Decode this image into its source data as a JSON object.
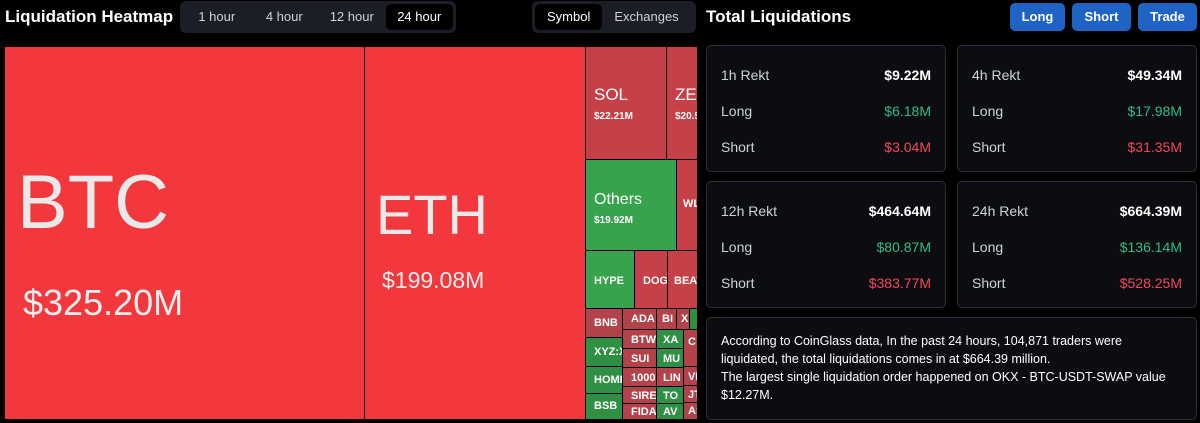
{
  "heatmap": {
    "title": "Liquidation Heatmap",
    "time_options": [
      "1 hour",
      "4 hour",
      "12 hour",
      "24 hour"
    ],
    "selected_time": "24 hour",
    "view_options": [
      "Symbol",
      "Exchanges"
    ],
    "selected_view": "Symbol",
    "tiles": [
      {
        "symbol": "BTC",
        "value": "$325.20M"
      },
      {
        "symbol": "ETH",
        "value": "$199.08M"
      },
      {
        "symbol": "SOL",
        "value": "$22.21M"
      },
      {
        "symbol": "ZEC",
        "value": "$20.5"
      },
      {
        "symbol": "Others",
        "value": "$19.92M"
      },
      {
        "symbol": "WL",
        "value": ""
      },
      {
        "symbol": "HYPE",
        "value": ""
      },
      {
        "symbol": "DOG",
        "value": ""
      },
      {
        "symbol": "BEAT",
        "value": ""
      },
      {
        "symbol": "BNB",
        "value": ""
      },
      {
        "symbol": "ADA",
        "value": ""
      },
      {
        "symbol": "BI",
        "value": ""
      },
      {
        "symbol": "X",
        "value": ""
      },
      {
        "symbol": "XYZ:X",
        "value": ""
      },
      {
        "symbol": "BTW",
        "value": ""
      },
      {
        "symbol": "XA",
        "value": ""
      },
      {
        "symbol": "SUI",
        "value": ""
      },
      {
        "symbol": "MU",
        "value": ""
      },
      {
        "symbol": "C",
        "value": ""
      },
      {
        "symbol": "HOME",
        "value": ""
      },
      {
        "symbol": "1000",
        "value": ""
      },
      {
        "symbol": "LIN",
        "value": ""
      },
      {
        "symbol": "VI",
        "value": ""
      },
      {
        "symbol": "SIRE",
        "value": ""
      },
      {
        "symbol": "TO",
        "value": ""
      },
      {
        "symbol": "JT",
        "value": ""
      },
      {
        "symbol": "BSB",
        "value": ""
      },
      {
        "symbol": "FIDA",
        "value": ""
      },
      {
        "symbol": "AV",
        "value": ""
      },
      {
        "symbol": "AS",
        "value": ""
      }
    ]
  },
  "total": {
    "title": "Total Liquidations",
    "buttons": [
      "Long",
      "Short",
      "Trade"
    ],
    "cards": [
      {
        "label": "1h Rekt",
        "total": "$9.22M",
        "long_label": "Long",
        "long": "$6.18M",
        "short_label": "Short",
        "short": "$3.04M"
      },
      {
        "label": "4h Rekt",
        "total": "$49.34M",
        "long_label": "Long",
        "long": "$17.98M",
        "short_label": "Short",
        "short": "$31.35M"
      },
      {
        "label": "12h Rekt",
        "total": "$464.64M",
        "long_label": "Long",
        "long": "$80.87M",
        "short_label": "Short",
        "short": "$383.77M"
      },
      {
        "label": "24h Rekt",
        "total": "$664.39M",
        "long_label": "Long",
        "long": "$136.14M",
        "short_label": "Short",
        "short": "$528.25M"
      }
    ],
    "info_line1": "According to CoinGlass data, In the past 24 hours, 104,871 traders were liquidated, the total liquidations comes in at $664.39 million.",
    "info_line2": "The largest single liquidation order happened on OKX - BTC-USDT-SWAP value $12.27M."
  },
  "colors": {
    "long": "#2ebd85",
    "short": "#f6465d",
    "accent_button": "#1f63c4",
    "heat_red": "#f2383d",
    "heat_green": "#37a34d"
  }
}
